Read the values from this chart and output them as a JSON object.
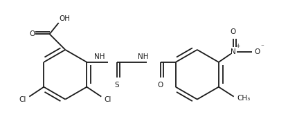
{
  "background": "#ffffff",
  "line_color": "#1a1a1a",
  "line_width": 1.3,
  "font_size": 7.5,
  "fig_width": 4.42,
  "fig_height": 1.98,
  "dpi": 100,
  "xlim": [
    0,
    10
  ],
  "ylim": [
    0,
    4.5
  ]
}
